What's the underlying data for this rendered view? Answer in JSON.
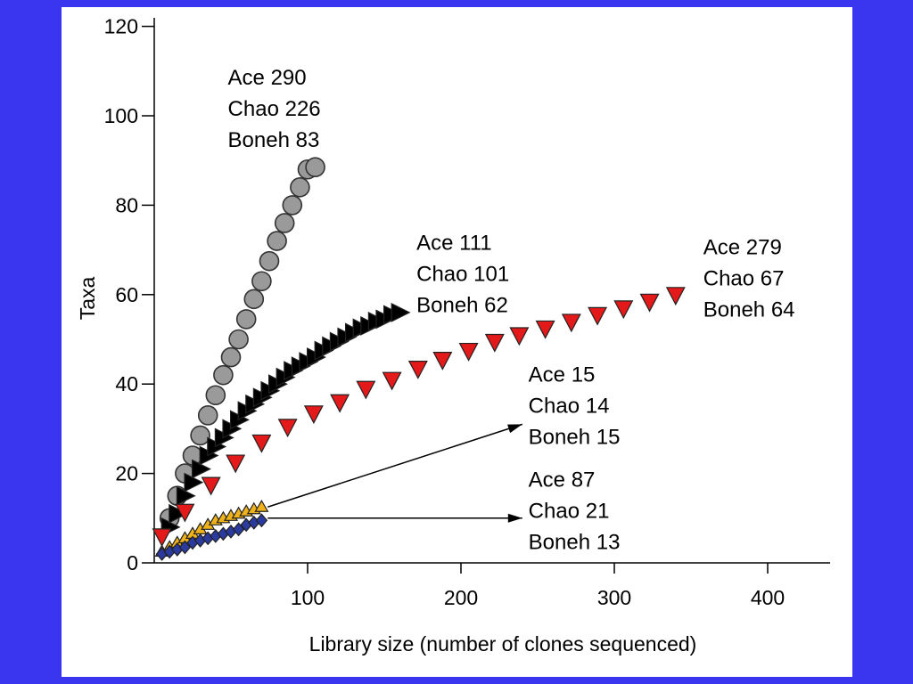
{
  "colors": {
    "frame": "#3a35ef",
    "panel": "#ffffff",
    "axis": "#000000"
  },
  "chart_data": {
    "type": "scatter",
    "title": "",
    "xlabel": "Library size (number of clones sequenced)",
    "ylabel": "Taxa",
    "xlim": [
      0,
      440
    ],
    "ylim": [
      0,
      122
    ],
    "xticks": [
      100,
      200,
      300,
      400
    ],
    "yticks": [
      0,
      20,
      40,
      60,
      80,
      100,
      120
    ],
    "grid": false,
    "legend": "none",
    "series": [
      {
        "marker": "circle",
        "color": "#9a9a9a",
        "x": [
          10,
          15,
          20,
          25,
          30,
          35,
          40,
          45,
          50,
          55,
          60,
          65,
          70,
          75,
          80,
          85,
          90,
          95,
          100,
          105
        ],
        "y": [
          10,
          15,
          20,
          24,
          28.5,
          33,
          37.5,
          42,
          46,
          50,
          54.5,
          59,
          63,
          67.5,
          72,
          76,
          80,
          84,
          88,
          88.5
        ]
      },
      {
        "marker": "triangle-right",
        "color": "#000000",
        "x": [
          10,
          15,
          20,
          25,
          30,
          35,
          40,
          45,
          50,
          55,
          60,
          65,
          70,
          75,
          80,
          85,
          90,
          95,
          100,
          105,
          110,
          115,
          120,
          125,
          130,
          135,
          140,
          145,
          150,
          155,
          160
        ],
        "y": [
          8,
          11,
          15,
          18,
          21,
          24,
          26,
          28,
          30,
          32,
          34,
          35.5,
          37,
          38.5,
          40,
          41.5,
          43,
          44,
          45,
          46,
          47.5,
          48.5,
          49.5,
          50.5,
          51.5,
          52.5,
          53,
          54,
          54.5,
          55.5,
          56
        ]
      },
      {
        "marker": "triangle-down",
        "color": "#e41919",
        "x": [
          5,
          20,
          37,
          53,
          70,
          87,
          104,
          121,
          138,
          155,
          172,
          188,
          205,
          222,
          238,
          255,
          272,
          289,
          306,
          323,
          340
        ],
        "y": [
          6,
          11.5,
          17.5,
          22.5,
          27,
          30.5,
          33.5,
          36,
          39,
          41,
          43.5,
          45.5,
          47.5,
          49.5,
          51,
          52.5,
          54,
          55.5,
          57,
          58.5,
          60
        ]
      },
      {
        "marker": "triangle-up",
        "color": "#f0b21a",
        "x": [
          5,
          10,
          15,
          20,
          25,
          30,
          35,
          40,
          45,
          50,
          55,
          60,
          65,
          70
        ],
        "y": [
          2.5,
          3.5,
          4.5,
          5.5,
          6.5,
          7.5,
          8.5,
          9.5,
          10,
          10.5,
          11,
          11.5,
          12,
          12.5
        ]
      },
      {
        "marker": "diamond",
        "color": "#2a3a9e",
        "x": [
          5,
          10,
          15,
          20,
          25,
          30,
          35,
          40,
          45,
          50,
          55,
          60,
          65,
          70
        ],
        "y": [
          2,
          2.5,
          3,
          3.5,
          4.5,
          5,
          5.5,
          6,
          6.5,
          7,
          7.5,
          8.5,
          9,
          9.5
        ]
      }
    ],
    "annotations": [
      {
        "lines": [
          "Ace 290",
          "Chao 226",
          "Boneh 83"
        ],
        "x": 48,
        "y": 107
      },
      {
        "lines": [
          "Ace 111",
          "Chao 101",
          "Boneh 62"
        ],
        "x": 171,
        "y": 70
      },
      {
        "lines": [
          "Ace 279",
          "Chao 67",
          "Boneh 64"
        ],
        "x": 358,
        "y": 69
      },
      {
        "lines": [
          "Ace 15",
          "Chao 14",
          "Boneh 15"
        ],
        "x": 244,
        "y": 40.5
      },
      {
        "lines": [
          "Ace 87",
          "Chao 21",
          "Boneh 13"
        ],
        "x": 244,
        "y": 17
      }
    ],
    "arrows": [
      {
        "from": [
          74,
          12.5
        ],
        "to": [
          240,
          31
        ]
      },
      {
        "from": [
          74,
          10
        ],
        "to": [
          240,
          10
        ]
      }
    ]
  }
}
